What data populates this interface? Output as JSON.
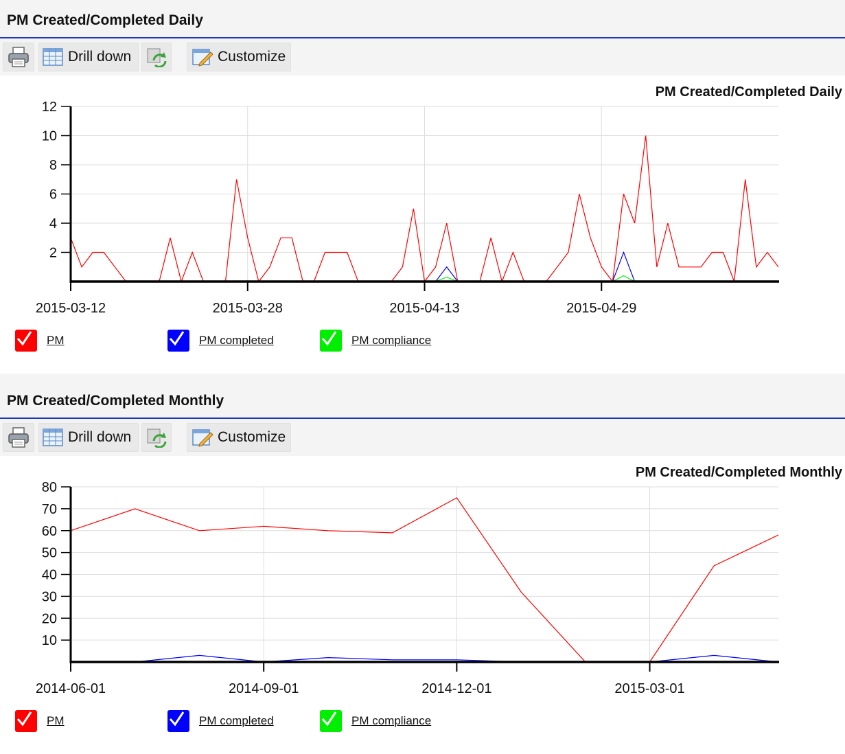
{
  "panels": [
    {
      "header": "PM Created/Completed Daily",
      "toolbar": {
        "drill_label": "Drill down",
        "customize_label": "Customize"
      },
      "legend": [
        {
          "label": "PM",
          "color": "#ff0000"
        },
        {
          "label": "PM completed",
          "color": "#0000ff"
        },
        {
          "label": "PM compliance",
          "color": "#00ee00"
        }
      ]
    },
    {
      "header": "PM Created/Completed Monthly",
      "toolbar": {
        "drill_label": "Drill down",
        "customize_label": "Customize"
      },
      "legend": [
        {
          "label": "PM",
          "color": "#ff0000"
        },
        {
          "label": "PM completed",
          "color": "#0000ff"
        },
        {
          "label": "PM compliance",
          "color": "#00ee00"
        }
      ]
    }
  ],
  "chart_data": [
    {
      "type": "line",
      "title": "PM Created/Completed Daily",
      "xlabel": "",
      "ylabel": "",
      "x_start": "2015-03-12",
      "x_ticks": [
        "2015-03-12",
        "2015-03-28",
        "2015-04-13",
        "2015-04-29"
      ],
      "y_ticks": [
        2,
        4,
        6,
        8,
        10,
        12
      ],
      "ylim": [
        0,
        12
      ],
      "grid": true,
      "legend_position": "bottom-left",
      "series": [
        {
          "name": "PM",
          "color": "#ff0000",
          "values": [
            3,
            1,
            2,
            2,
            1,
            0,
            0,
            0,
            0,
            3,
            0,
            2,
            0,
            0,
            0,
            7,
            3,
            0,
            1,
            3,
            3,
            0,
            0,
            2,
            2,
            2,
            0,
            0,
            0,
            0,
            1,
            5,
            0,
            1,
            4,
            0,
            0,
            0,
            3,
            0,
            2,
            0,
            0,
            0,
            1,
            2,
            6,
            3,
            1,
            0,
            6,
            4,
            10,
            1,
            4,
            1,
            1,
            1,
            2,
            2,
            0,
            7,
            1,
            2,
            1
          ]
        },
        {
          "name": "PM completed",
          "color": "#0000ff",
          "values": [
            0,
            0,
            0,
            0,
            0,
            0,
            0,
            0,
            0,
            0,
            0,
            0,
            0,
            0,
            0,
            0,
            0,
            0,
            0,
            0,
            0,
            0,
            0,
            0,
            0,
            0,
            0,
            0,
            0,
            0,
            0,
            0,
            0,
            0,
            1,
            0,
            0,
            0,
            0,
            0,
            0,
            0,
            0,
            0,
            0,
            0,
            0,
            0,
            0,
            0,
            2,
            0,
            0,
            0,
            0,
            0,
            0,
            0,
            0,
            0,
            0,
            0,
            0,
            0,
            0
          ]
        },
        {
          "name": "PM compliance",
          "color": "#00ee00",
          "values": [
            0,
            0,
            0,
            0,
            0,
            0,
            0,
            0,
            0,
            0,
            0,
            0,
            0,
            0,
            0,
            0,
            0,
            0,
            0,
            0,
            0,
            0,
            0,
            0,
            0,
            0,
            0,
            0,
            0,
            0,
            0,
            0,
            0,
            0,
            0.3,
            0,
            0,
            0,
            0,
            0,
            0,
            0,
            0,
            0,
            0,
            0,
            0,
            0,
            0,
            0,
            0.4,
            0,
            0,
            0,
            0,
            0,
            0,
            0,
            0,
            0,
            0,
            0,
            0,
            0,
            0
          ]
        }
      ]
    },
    {
      "type": "line",
      "title": "PM Created/Completed Monthly",
      "xlabel": "",
      "ylabel": "",
      "categories": [
        "2014-06-01",
        "2014-07-01",
        "2014-08-01",
        "2014-09-01",
        "2014-10-01",
        "2014-11-01",
        "2014-12-01",
        "2015-01-01",
        "2015-02-01",
        "2015-03-01",
        "2015-04-01",
        "2015-05-01"
      ],
      "x_ticks": [
        "2014-06-01",
        "2014-09-01",
        "2014-12-01",
        "2015-03-01"
      ],
      "y_ticks": [
        10,
        20,
        30,
        40,
        50,
        60,
        70,
        80
      ],
      "ylim": [
        0,
        80
      ],
      "grid": true,
      "legend_position": "bottom-left",
      "series": [
        {
          "name": "PM",
          "color": "#ff0000",
          "values": [
            60,
            70,
            60,
            62,
            60,
            59,
            75,
            32,
            0,
            0,
            44,
            58
          ]
        },
        {
          "name": "PM completed",
          "color": "#0000ff",
          "values": [
            0,
            0,
            3,
            0,
            2,
            1,
            1,
            0,
            0,
            0,
            3,
            0
          ]
        },
        {
          "name": "PM compliance",
          "color": "#00ee00",
          "values": [
            0,
            0,
            0,
            0,
            0,
            0,
            0,
            0,
            0,
            0,
            0,
            0
          ]
        }
      ]
    }
  ]
}
